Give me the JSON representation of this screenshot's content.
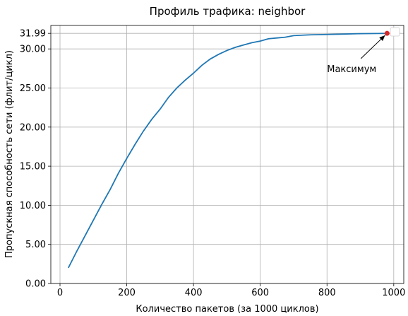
{
  "chart_data": {
    "type": "line",
    "title": "Профиль трафика: neighbor",
    "xlabel": "Количество пакетов (за 1000 циклов)",
    "ylabel": "Пропускная способность сети (флит/цикл)",
    "x": [
      25,
      50,
      75,
      100,
      125,
      150,
      175,
      200,
      225,
      250,
      275,
      300,
      325,
      350,
      375,
      400,
      425,
      450,
      475,
      500,
      525,
      550,
      575,
      600,
      625,
      650,
      675,
      700,
      750,
      800,
      850,
      900,
      950,
      980
    ],
    "series": [
      {
        "color": "#1f77b4",
        "values": [
          2.0,
          4.1,
          6.1,
          8.1,
          10.1,
          12.0,
          14.1,
          16.0,
          17.8,
          19.5,
          21.0,
          22.3,
          23.8,
          25.0,
          26.0,
          26.9,
          27.9,
          28.7,
          29.3,
          29.8,
          30.2,
          30.5,
          30.8,
          31.0,
          31.3,
          31.4,
          31.5,
          31.7,
          31.8,
          31.85,
          31.9,
          31.95,
          31.97,
          31.99
        ]
      }
    ],
    "max_point": {
      "x": 980,
      "y": 31.99,
      "color": "#d62728"
    },
    "annotations": [
      {
        "text": "Максимум",
        "x": 980,
        "y": 31.99,
        "text_x": 800,
        "text_y": 27.5
      }
    ],
    "xlim": [
      -27.5,
      1030
    ],
    "ylim": [
      0,
      33
    ],
    "xticks": [
      0,
      200,
      400,
      600,
      800,
      1000
    ],
    "yticks": [
      {
        "value": 0,
        "label": "0.00"
      },
      {
        "value": 5,
        "label": "5.00"
      },
      {
        "value": 10,
        "label": "10.00"
      },
      {
        "value": 15,
        "label": "15.00"
      },
      {
        "value": 20,
        "label": "20.00"
      },
      {
        "value": 25,
        "label": "25.00"
      },
      {
        "value": 30,
        "label": "30.00"
      },
      {
        "value": 31.99,
        "label": "31.99"
      }
    ],
    "grid": true
  }
}
